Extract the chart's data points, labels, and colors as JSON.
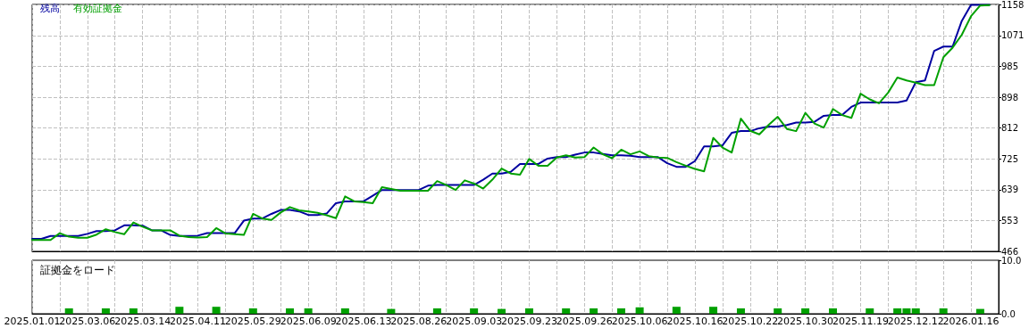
{
  "chart_data": [
    {
      "type": "line",
      "legend": "top left",
      "grid": true,
      "tick_labels": "y",
      "line_style": "solid",
      "marker": "none",
      "categories": [
        "2025.01.01",
        null,
        null,
        null,
        null,
        null,
        "2025.03.06",
        null,
        null,
        null,
        null,
        null,
        "2025.03.14",
        null,
        null,
        null,
        null,
        null,
        "2025.04.11",
        null,
        null,
        null,
        null,
        null,
        "2025.05.29",
        null,
        null,
        null,
        null,
        null,
        "2025.06.09",
        null,
        null,
        null,
        null,
        null,
        "2025.06.13",
        null,
        null,
        null,
        null,
        null,
        "2025.08.26",
        null,
        null,
        null,
        null,
        null,
        "2025.09.03",
        null,
        null,
        null,
        null,
        null,
        "2025.09.23",
        null,
        null,
        null,
        null,
        null,
        "2025.09.26",
        null,
        null,
        null,
        null,
        null,
        "2025.10.06",
        null,
        null,
        null,
        null,
        null,
        "2025.10.16",
        null,
        null,
        null,
        null,
        null,
        "2025.10.22",
        null,
        null,
        null,
        null,
        null,
        "2025.10.30",
        null,
        null,
        null,
        null,
        null,
        "2025.11.19",
        null,
        null,
        null,
        null,
        null,
        "2025.12.12",
        null,
        null,
        null,
        null,
        null,
        "2026.01.16",
        null,
        null,
        null
      ],
      "ylim": [
        466,
        1158
      ],
      "yticks": [
        466,
        553,
        639,
        725,
        812,
        898,
        985,
        1071,
        1158
      ],
      "series": [
        {
          "name": "残高",
          "color": "#0000a0",
          "values": [
            501,
            501,
            509,
            509,
            509,
            509,
            515,
            523,
            523,
            525,
            539,
            539,
            538,
            525,
            525,
            512,
            509,
            509,
            510,
            517,
            517,
            517,
            517,
            552,
            558,
            558,
            571,
            582,
            582,
            578,
            568,
            568,
            572,
            601,
            606,
            606,
            606,
            622,
            638,
            638,
            638,
            638,
            638,
            650,
            652,
            652,
            652,
            652,
            652,
            667,
            684,
            684,
            689,
            711,
            711,
            711,
            726,
            730,
            730,
            737,
            743,
            743,
            739,
            735,
            735,
            734,
            730,
            730,
            730,
            713,
            703,
            703,
            719,
            760,
            760,
            763,
            798,
            803,
            803,
            811,
            816,
            816,
            820,
            827,
            827,
            829,
            846,
            848,
            848,
            871,
            883,
            883,
            883,
            883,
            883,
            889,
            940,
            945,
            1028,
            1040,
            1040,
            1112,
            1157,
            1157,
            1157,
            null
          ]
        },
        {
          "name": "有効証拠金",
          "color": "#00a000",
          "values": [
            498,
            498,
            498,
            517,
            507,
            504,
            504,
            513,
            528,
            520,
            514,
            547,
            535,
            525,
            525,
            525,
            510,
            506,
            505,
            506,
            531,
            516,
            514,
            512,
            571,
            558,
            554,
            575,
            590,
            581,
            578,
            574,
            567,
            559,
            620,
            606,
            604,
            601,
            646,
            641,
            636,
            636,
            636,
            636,
            663,
            652,
            638,
            665,
            656,
            642,
            667,
            698,
            684,
            681,
            725,
            706,
            706,
            729,
            735,
            729,
            730,
            757,
            738,
            727,
            751,
            738,
            746,
            733,
            729,
            728,
            716,
            706,
            697,
            690,
            784,
            757,
            743,
            838,
            804,
            794,
            820,
            843,
            809,
            803,
            854,
            824,
            813,
            865,
            848,
            840,
            908,
            892,
            881,
            911,
            953,
            945,
            939,
            932,
            932,
            1010,
            1037,
            1073,
            1125,
            1155,
            1156,
            null
          ]
        }
      ]
    },
    {
      "type": "bar",
      "title": "証拠金をロード",
      "grid": "x",
      "color": "#00a000",
      "categories": [
        "2025.01.01",
        null,
        null,
        null,
        null,
        null,
        "2025.03.06",
        null,
        null,
        null,
        null,
        null,
        "2025.03.14",
        null,
        null,
        null,
        null,
        null,
        "2025.04.11",
        null,
        null,
        null,
        null,
        null,
        "2025.05.29",
        null,
        null,
        null,
        null,
        null,
        "2025.06.09",
        null,
        null,
        null,
        null,
        null,
        "2025.06.13",
        null,
        null,
        null,
        null,
        null,
        "2025.08.26",
        null,
        null,
        null,
        null,
        null,
        "2025.09.03",
        null,
        null,
        null,
        null,
        null,
        "2025.09.23",
        null,
        null,
        null,
        null,
        null,
        "2025.09.26",
        null,
        null,
        null,
        null,
        null,
        "2025.10.06",
        null,
        null,
        null,
        null,
        null,
        "2025.10.16",
        null,
        null,
        null,
        null,
        null,
        "2025.10.22",
        null,
        null,
        null,
        null,
        null,
        "2025.10.30",
        null,
        null,
        null,
        null,
        null,
        "2025.11.19",
        null,
        null,
        null,
        null,
        null,
        "2025.12.12",
        null,
        null,
        null,
        null,
        null,
        "2026.01.16",
        null,
        null,
        null
      ],
      "ylim": [
        0,
        10
      ],
      "yticks": [
        {
          "value": 0,
          "label": "0.0"
        },
        {
          "value": 10,
          "label": "10.0"
        }
      ],
      "values": [
        null,
        null,
        null,
        null,
        1,
        null,
        null,
        null,
        1,
        null,
        null,
        1,
        null,
        null,
        null,
        null,
        1.3,
        null,
        null,
        null,
        1.3,
        null,
        null,
        null,
        1,
        null,
        null,
        null,
        1,
        null,
        1,
        null,
        null,
        null,
        1,
        null,
        null,
        null,
        null,
        0.9,
        null,
        null,
        null,
        null,
        1,
        null,
        null,
        null,
        1,
        null,
        null,
        0.9,
        null,
        null,
        1,
        null,
        null,
        null,
        1,
        null,
        null,
        1,
        null,
        null,
        1,
        null,
        1.2,
        null,
        null,
        null,
        1.3,
        null,
        null,
        null,
        1.3,
        null,
        null,
        1,
        null,
        null,
        null,
        1,
        null,
        null,
        1,
        null,
        null,
        1,
        null,
        null,
        null,
        1,
        null,
        null,
        1,
        1,
        1,
        null,
        null,
        1,
        null,
        null,
        null,
        0.9,
        null,
        null
      ]
    }
  ]
}
